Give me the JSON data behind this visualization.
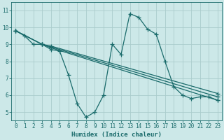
{
  "xlabel": "Humidex (Indice chaleur)",
  "xlim": [
    -0.5,
    23.5
  ],
  "ylim": [
    4.5,
    11.5
  ],
  "xticks": [
    0,
    1,
    2,
    3,
    4,
    5,
    6,
    7,
    8,
    9,
    10,
    11,
    12,
    13,
    14,
    15,
    16,
    17,
    18,
    19,
    20,
    21,
    22,
    23
  ],
  "yticks": [
    5,
    6,
    7,
    8,
    9,
    10,
    11
  ],
  "bg_color": "#cce8e8",
  "grid_color": "#aacccc",
  "line_color": "#1a6b6b",
  "lines": [
    {
      "x": [
        0,
        1,
        2,
        3,
        4,
        5,
        6,
        7,
        8,
        9,
        10,
        11,
        12,
        13,
        14,
        15,
        16,
        17,
        18,
        19,
        20,
        21,
        22,
        23
      ],
      "y": [
        9.8,
        9.5,
        9.0,
        9.0,
        8.7,
        8.6,
        7.2,
        5.5,
        4.7,
        5.0,
        6.0,
        9.0,
        8.4,
        10.8,
        10.6,
        9.9,
        9.6,
        8.0,
        6.5,
        6.0,
        5.8,
        5.9,
        5.9,
        5.7
      ],
      "marker": true
    },
    {
      "x": [
        0,
        3,
        4,
        23
      ],
      "y": [
        9.8,
        9.0,
        8.8,
        5.7
      ],
      "marker": true
    },
    {
      "x": [
        0,
        3,
        4,
        23
      ],
      "y": [
        9.8,
        9.0,
        8.85,
        5.9
      ],
      "marker": true
    },
    {
      "x": [
        0,
        3,
        4,
        23
      ],
      "y": [
        9.8,
        9.0,
        8.9,
        6.1
      ],
      "marker": true
    }
  ]
}
